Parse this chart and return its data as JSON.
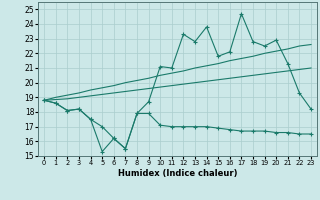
{
  "xlabel": "Humidex (Indice chaleur)",
  "x": [
    0,
    1,
    2,
    3,
    4,
    5,
    6,
    7,
    8,
    9,
    10,
    11,
    12,
    13,
    14,
    15,
    16,
    17,
    18,
    19,
    20,
    21,
    22,
    23
  ],
  "line1": [
    18.8,
    18.6,
    18.1,
    18.2,
    17.5,
    17.0,
    16.2,
    15.5,
    17.9,
    18.7,
    21.1,
    21.0,
    23.3,
    22.8,
    23.8,
    21.8,
    22.1,
    24.7,
    22.8,
    22.5,
    22.9,
    21.3,
    19.3,
    18.2
  ],
  "line2_upper": [
    18.8,
    19.0,
    19.15,
    19.3,
    19.5,
    19.65,
    19.8,
    20.0,
    20.15,
    20.3,
    20.5,
    20.65,
    20.8,
    21.0,
    21.15,
    21.3,
    21.5,
    21.65,
    21.8,
    22.0,
    22.15,
    22.3,
    22.5,
    22.6
  ],
  "line2_lower": [
    18.8,
    18.85,
    18.9,
    19.0,
    19.1,
    19.2,
    19.3,
    19.4,
    19.5,
    19.6,
    19.7,
    19.8,
    19.9,
    20.0,
    20.1,
    20.2,
    20.3,
    20.4,
    20.5,
    20.6,
    20.7,
    20.8,
    20.9,
    21.0
  ],
  "line3": [
    18.8,
    18.6,
    18.1,
    18.2,
    17.5,
    15.3,
    16.2,
    15.5,
    17.9,
    17.9,
    17.1,
    17.0,
    17.0,
    17.0,
    17.0,
    16.9,
    16.8,
    16.7,
    16.7,
    16.7,
    16.6,
    16.6,
    16.5,
    16.5
  ],
  "color": "#1a7a6a",
  "bg_color": "#cce8e8",
  "grid_color": "#aacece",
  "ylim": [
    15,
    25.5
  ],
  "xlim": [
    -0.5,
    23.5
  ],
  "yticks": [
    15,
    16,
    17,
    18,
    19,
    20,
    21,
    22,
    23,
    24,
    25
  ],
  "xticks": [
    0,
    1,
    2,
    3,
    4,
    5,
    6,
    7,
    8,
    9,
    10,
    11,
    12,
    13,
    14,
    15,
    16,
    17,
    18,
    19,
    20,
    21,
    22,
    23
  ]
}
